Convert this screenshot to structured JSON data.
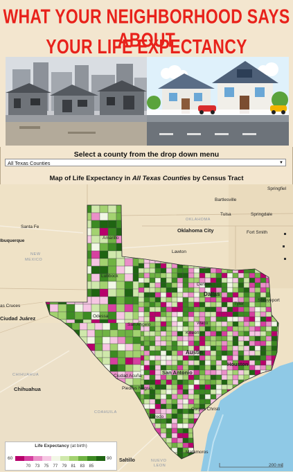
{
  "banner": {
    "title_line1": "WHAT YOUR NEIGHBORHOOD SAYS ABOUT",
    "title_line2": "YOUR LIFE EXPECTANCY"
  },
  "selector": {
    "label": "Select a county from the drop down menu",
    "value": "All Texas Counties"
  },
  "map": {
    "title_prefix": "Map of Life Expectancy in ",
    "title_county": "All Texas Counties",
    "title_suffix": " by Census Tract",
    "places": [
      {
        "name": "Springfiel"
      },
      {
        "name": "Bartlesville"
      },
      {
        "name": "Tulsa"
      },
      {
        "name": "Springdale"
      },
      {
        "name": "OKLAHOMA"
      },
      {
        "name": "Oklahoma City"
      },
      {
        "name": "Santa Fe"
      },
      {
        "name": "Fort Smith"
      },
      {
        "name": "lbuquerque"
      },
      {
        "name": "Amarillo"
      },
      {
        "name": "NEW"
      },
      {
        "name": "MEXICO"
      },
      {
        "name": "Lawton"
      },
      {
        "name": "Lubbock"
      },
      {
        "name": "Denton"
      },
      {
        "name": "Dallas"
      },
      {
        "name": "Tyler"
      },
      {
        "name": "Shreveport"
      },
      {
        "name": "as Cruces"
      },
      {
        "name": "Ciudad Juárez"
      },
      {
        "name": "Odessa"
      },
      {
        "name": "San Angelo"
      },
      {
        "name": "Waco"
      },
      {
        "name": "Killeen"
      },
      {
        "name": "Austin"
      },
      {
        "name": "Houston"
      },
      {
        "name": "CHIHUAHUA"
      },
      {
        "name": "Ciudad Acuña"
      },
      {
        "name": "San Antonio"
      },
      {
        "name": "Chihuahua"
      },
      {
        "name": "Piedras Negras"
      },
      {
        "name": "COAHUILA"
      },
      {
        "name": "Corpus Christi"
      },
      {
        "name": "Laredo"
      },
      {
        "name": "Saltillo"
      },
      {
        "name": "NUEVO"
      },
      {
        "name": "LEON"
      },
      {
        "name": "Matamoros"
      }
    ]
  },
  "legend": {
    "title": "Life Expectancy",
    "subtitle": " (at birth)",
    "min_label": "60",
    "max_label": "90",
    "ticks": [
      "70",
      "73",
      "75",
      "77",
      "79",
      "81",
      "83",
      "85"
    ],
    "colors": [
      "#b7006b",
      "#d640a0",
      "#ea8fc8",
      "#f6c6e3",
      "#f2f7e6",
      "#cfe8ab",
      "#a3d270",
      "#6fb343",
      "#3c8a22",
      "#1f6412"
    ]
  },
  "scale_bar": {
    "label": "200 mi"
  }
}
